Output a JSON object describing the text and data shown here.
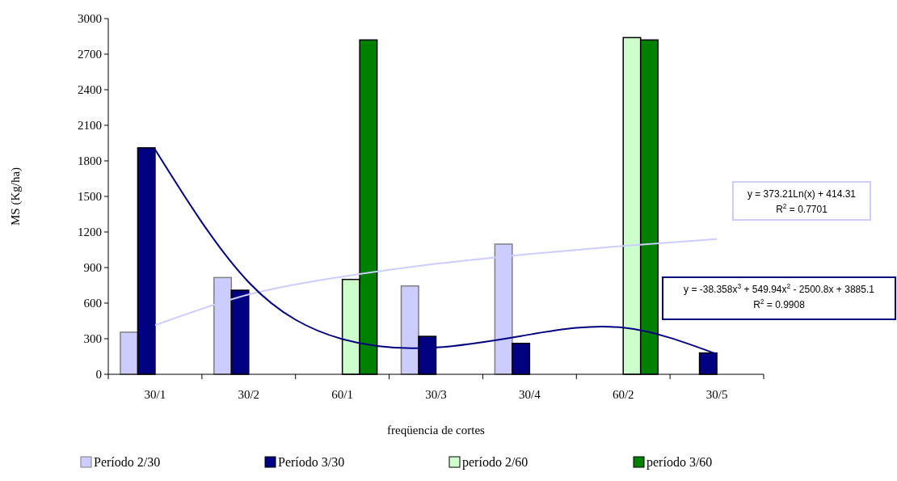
{
  "chart_data": {
    "type": "bar",
    "xlabel": "freqüencia de cortes",
    "ylabel": "MS (Kg/ha)",
    "categories": [
      "30/1",
      "30/2",
      "60/1",
      "30/3",
      "30/4",
      "60/2",
      "30/5"
    ],
    "series": [
      {
        "name": "Período 2/30",
        "color": "#ccccff",
        "values": [
          355,
          816,
          null,
          745,
          1098,
          null,
          null
        ]
      },
      {
        "name": "Período 3/30",
        "color": "#000080",
        "values": [
          1910,
          709,
          null,
          320,
          261,
          null,
          180
        ]
      },
      {
        "name": "período 2/60",
        "color": "#ccffcc",
        "values": [
          null,
          null,
          800,
          null,
          null,
          2840,
          null
        ]
      },
      {
        "name": "período 3/60",
        "color": "#008000",
        "values": [
          null,
          null,
          2820,
          null,
          null,
          2820,
          null
        ]
      },
      {
        "type": "line",
        "color": "#ccccff",
        "values": [
          414,
          673,
          824,
          932,
          1015,
          1083,
          1140
        ]
      },
      {
        "type": "line",
        "color": "#000080",
        "values": [
          1896,
          776,
          297,
          226,
          335,
          393,
          170
        ]
      }
    ],
    "ylim": [
      0,
      3000
    ],
    "yticks": [
      0,
      300,
      600,
      900,
      1200,
      1500,
      1800,
      2100,
      2400,
      2700,
      3000
    ],
    "grid": false,
    "legend": "bottom",
    "annotations": [
      "y = 373.21Ln(x) + 414.31",
      "R$^{2}$ = 0.7701",
      "y = -38.358x$^{3}$ + 549.94x$^{2}$ - 2500.8x + 3885.1",
      "R$^{2}$ = 0.9908"
    ]
  }
}
